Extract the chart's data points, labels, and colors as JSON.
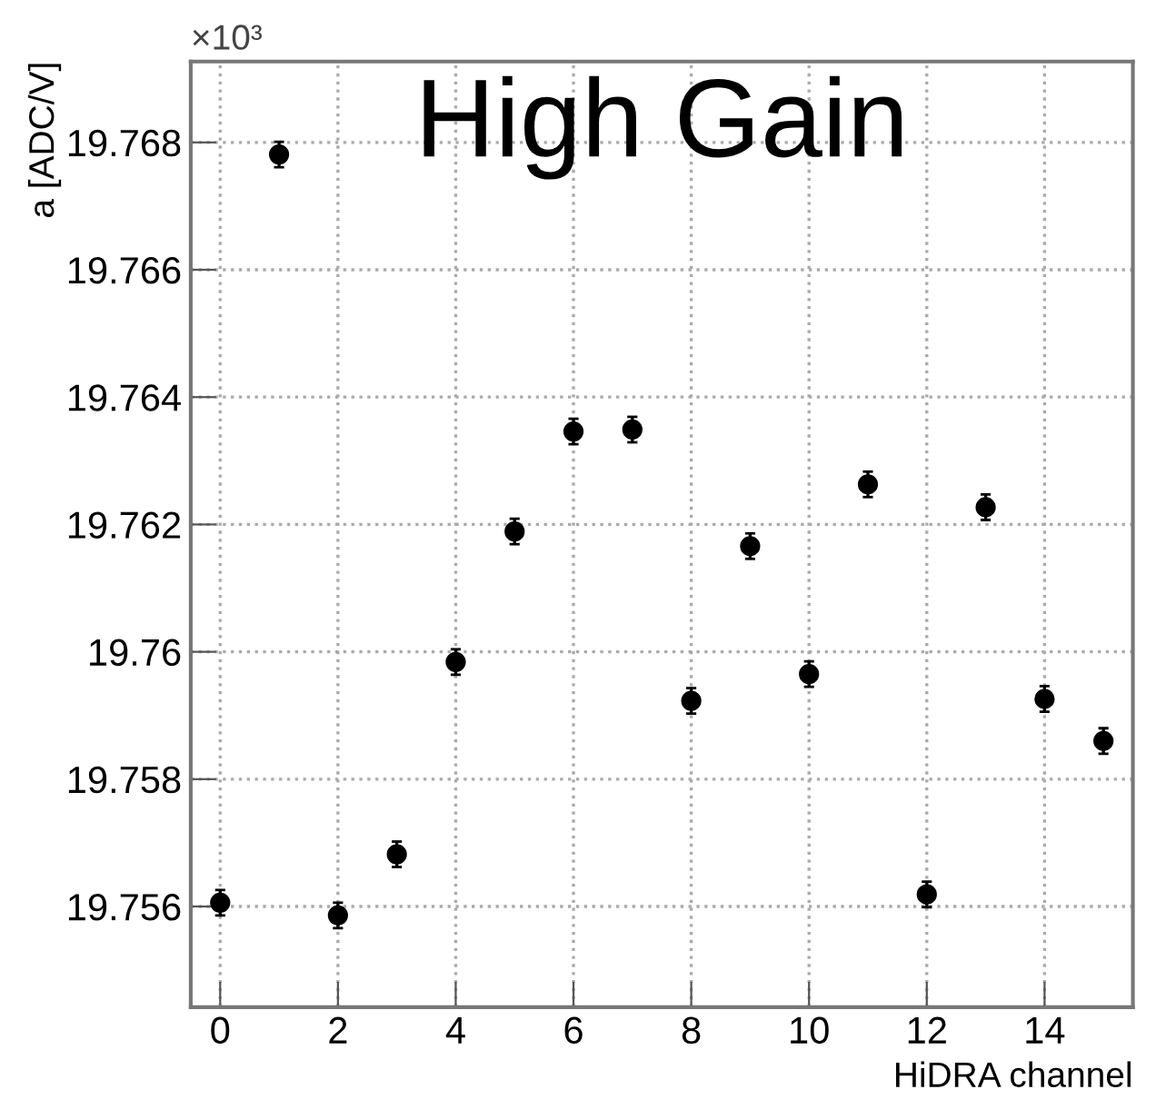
{
  "chart_data": {
    "type": "scatter",
    "title": "High Gain",
    "xlabel": "HiDRA channel",
    "ylabel": "a [ADC/V]",
    "annotations": [
      "×10³"
    ],
    "x": [
      0,
      1,
      2,
      3,
      4,
      5,
      6,
      7,
      8,
      9,
      10,
      11,
      12,
      13,
      14,
      15
    ],
    "values": [
      19.75606,
      19.76781,
      19.75586,
      19.75682,
      19.75984,
      19.76189,
      19.76346,
      19.76349,
      19.75923,
      19.76166,
      19.75965,
      19.76263,
      19.75619,
      19.76227,
      19.75926,
      19.7586
    ],
    "errors": [
      0.0002,
      0.0002,
      0.0002,
      0.0002,
      0.0002,
      0.0002,
      0.0002,
      0.0002,
      0.0002,
      0.0002,
      0.0002,
      0.0002,
      0.0002,
      0.0002,
      0.0002,
      0.0002
    ],
    "color": "#000000",
    "marker": "circle",
    "xlim": [
      -0.5,
      15.5
    ],
    "xticks": [
      0,
      2,
      4,
      6,
      8,
      10,
      12,
      14
    ],
    "ylim": [
      19.75442,
      19.76927
    ],
    "yticks": [
      {
        "value": 19.756,
        "label": "19.756"
      },
      {
        "value": 19.758,
        "label": "19.758"
      },
      {
        "value": 19.76,
        "label": "19.76"
      },
      {
        "value": 19.762,
        "label": "19.762"
      },
      {
        "value": 19.764,
        "label": "19.764"
      },
      {
        "value": 19.766,
        "label": "19.766"
      },
      {
        "value": 19.768,
        "label": "19.768"
      }
    ],
    "grid": true
  }
}
